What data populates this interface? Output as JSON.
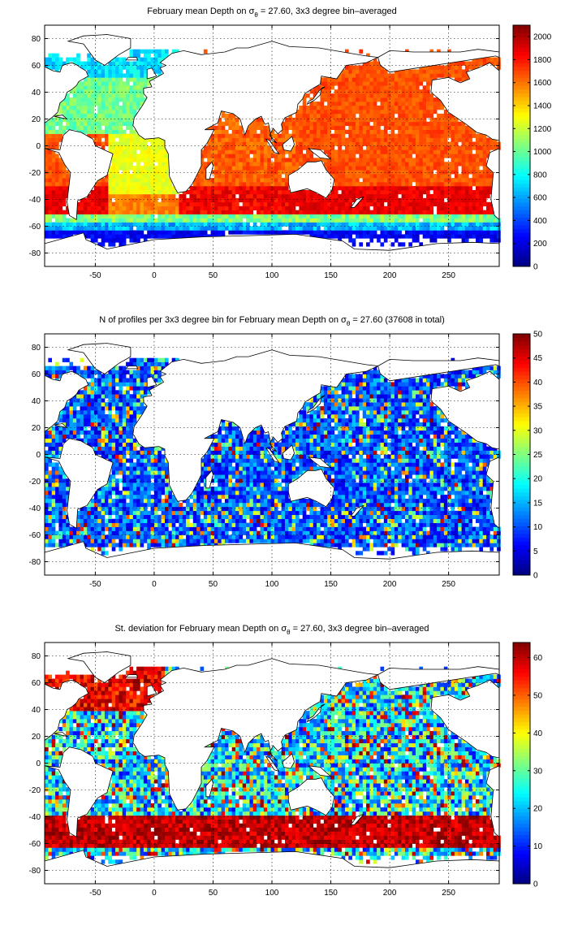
{
  "chart_data": [
    {
      "type": "heatmap",
      "title": "February mean Depth on σθ = 27.60, 3x3 degree bin–averaged",
      "title_parts": {
        "pre": "February mean Depth on ",
        "sym": "σ",
        "sub": "θ",
        "post": " = 27.60, 3x3 degree bin–averaged"
      },
      "x_ticks": [
        "-50",
        "0",
        "50",
        "100",
        "150",
        "200",
        "250"
      ],
      "y_ticks": [
        "80",
        "60",
        "40",
        "20",
        "0",
        "-20",
        "-40",
        "-60",
        "-80"
      ],
      "xlim": [
        -93,
        293
      ],
      "ylim": [
        -90,
        90
      ],
      "colorbar_ticks": [
        "2000",
        "1800",
        "1600",
        "1400",
        "1200",
        "1000",
        "800",
        "600",
        "400",
        "200",
        "0"
      ],
      "clim": [
        0,
        2100
      ],
      "colormap": "jet",
      "grid": true
    },
    {
      "type": "heatmap",
      "title": "N of profiles per 3x3 degree bin for February mean Depth on σθ = 27.60 (37608 in total)",
      "title_parts": {
        "pre": "N of profiles per 3x3 degree bin for February mean Depth on ",
        "sym": "σ",
        "sub": "θ",
        "post": " = 27.60 (37608 in total)"
      },
      "x_ticks": [
        "-50",
        "0",
        "50",
        "100",
        "150",
        "200",
        "250"
      ],
      "y_ticks": [
        "80",
        "60",
        "40",
        "20",
        "0",
        "-20",
        "-40",
        "-60",
        "-80"
      ],
      "xlim": [
        -93,
        293
      ],
      "ylim": [
        -90,
        90
      ],
      "colorbar_ticks": [
        "50",
        "45",
        "40",
        "35",
        "30",
        "25",
        "20",
        "15",
        "10",
        "5",
        "0"
      ],
      "clim": [
        0,
        50
      ],
      "colormap": "jet",
      "grid": true
    },
    {
      "type": "heatmap",
      "title": "St. deviation for February mean Depth on σθ = 27.60, 3x3 degree bin–averaged",
      "title_parts": {
        "pre": "St. deviation for February mean Depth on ",
        "sym": "σ",
        "sub": "θ",
        "post": " = 27.60, 3x3 degree bin–averaged"
      },
      "x_ticks": [
        "-50",
        "0",
        "50",
        "100",
        "150",
        "200",
        "250"
      ],
      "y_ticks": [
        "80",
        "60",
        "40",
        "20",
        "0",
        "-20",
        "-40",
        "-60",
        "-80"
      ],
      "xlim": [
        -93,
        293
      ],
      "ylim": [
        -90,
        90
      ],
      "colorbar_ticks": [
        "60",
        "50",
        "40",
        "30",
        "20",
        "10",
        "0"
      ],
      "clim": [
        0,
        64
      ],
      "colormap": "jet",
      "grid": true
    }
  ]
}
